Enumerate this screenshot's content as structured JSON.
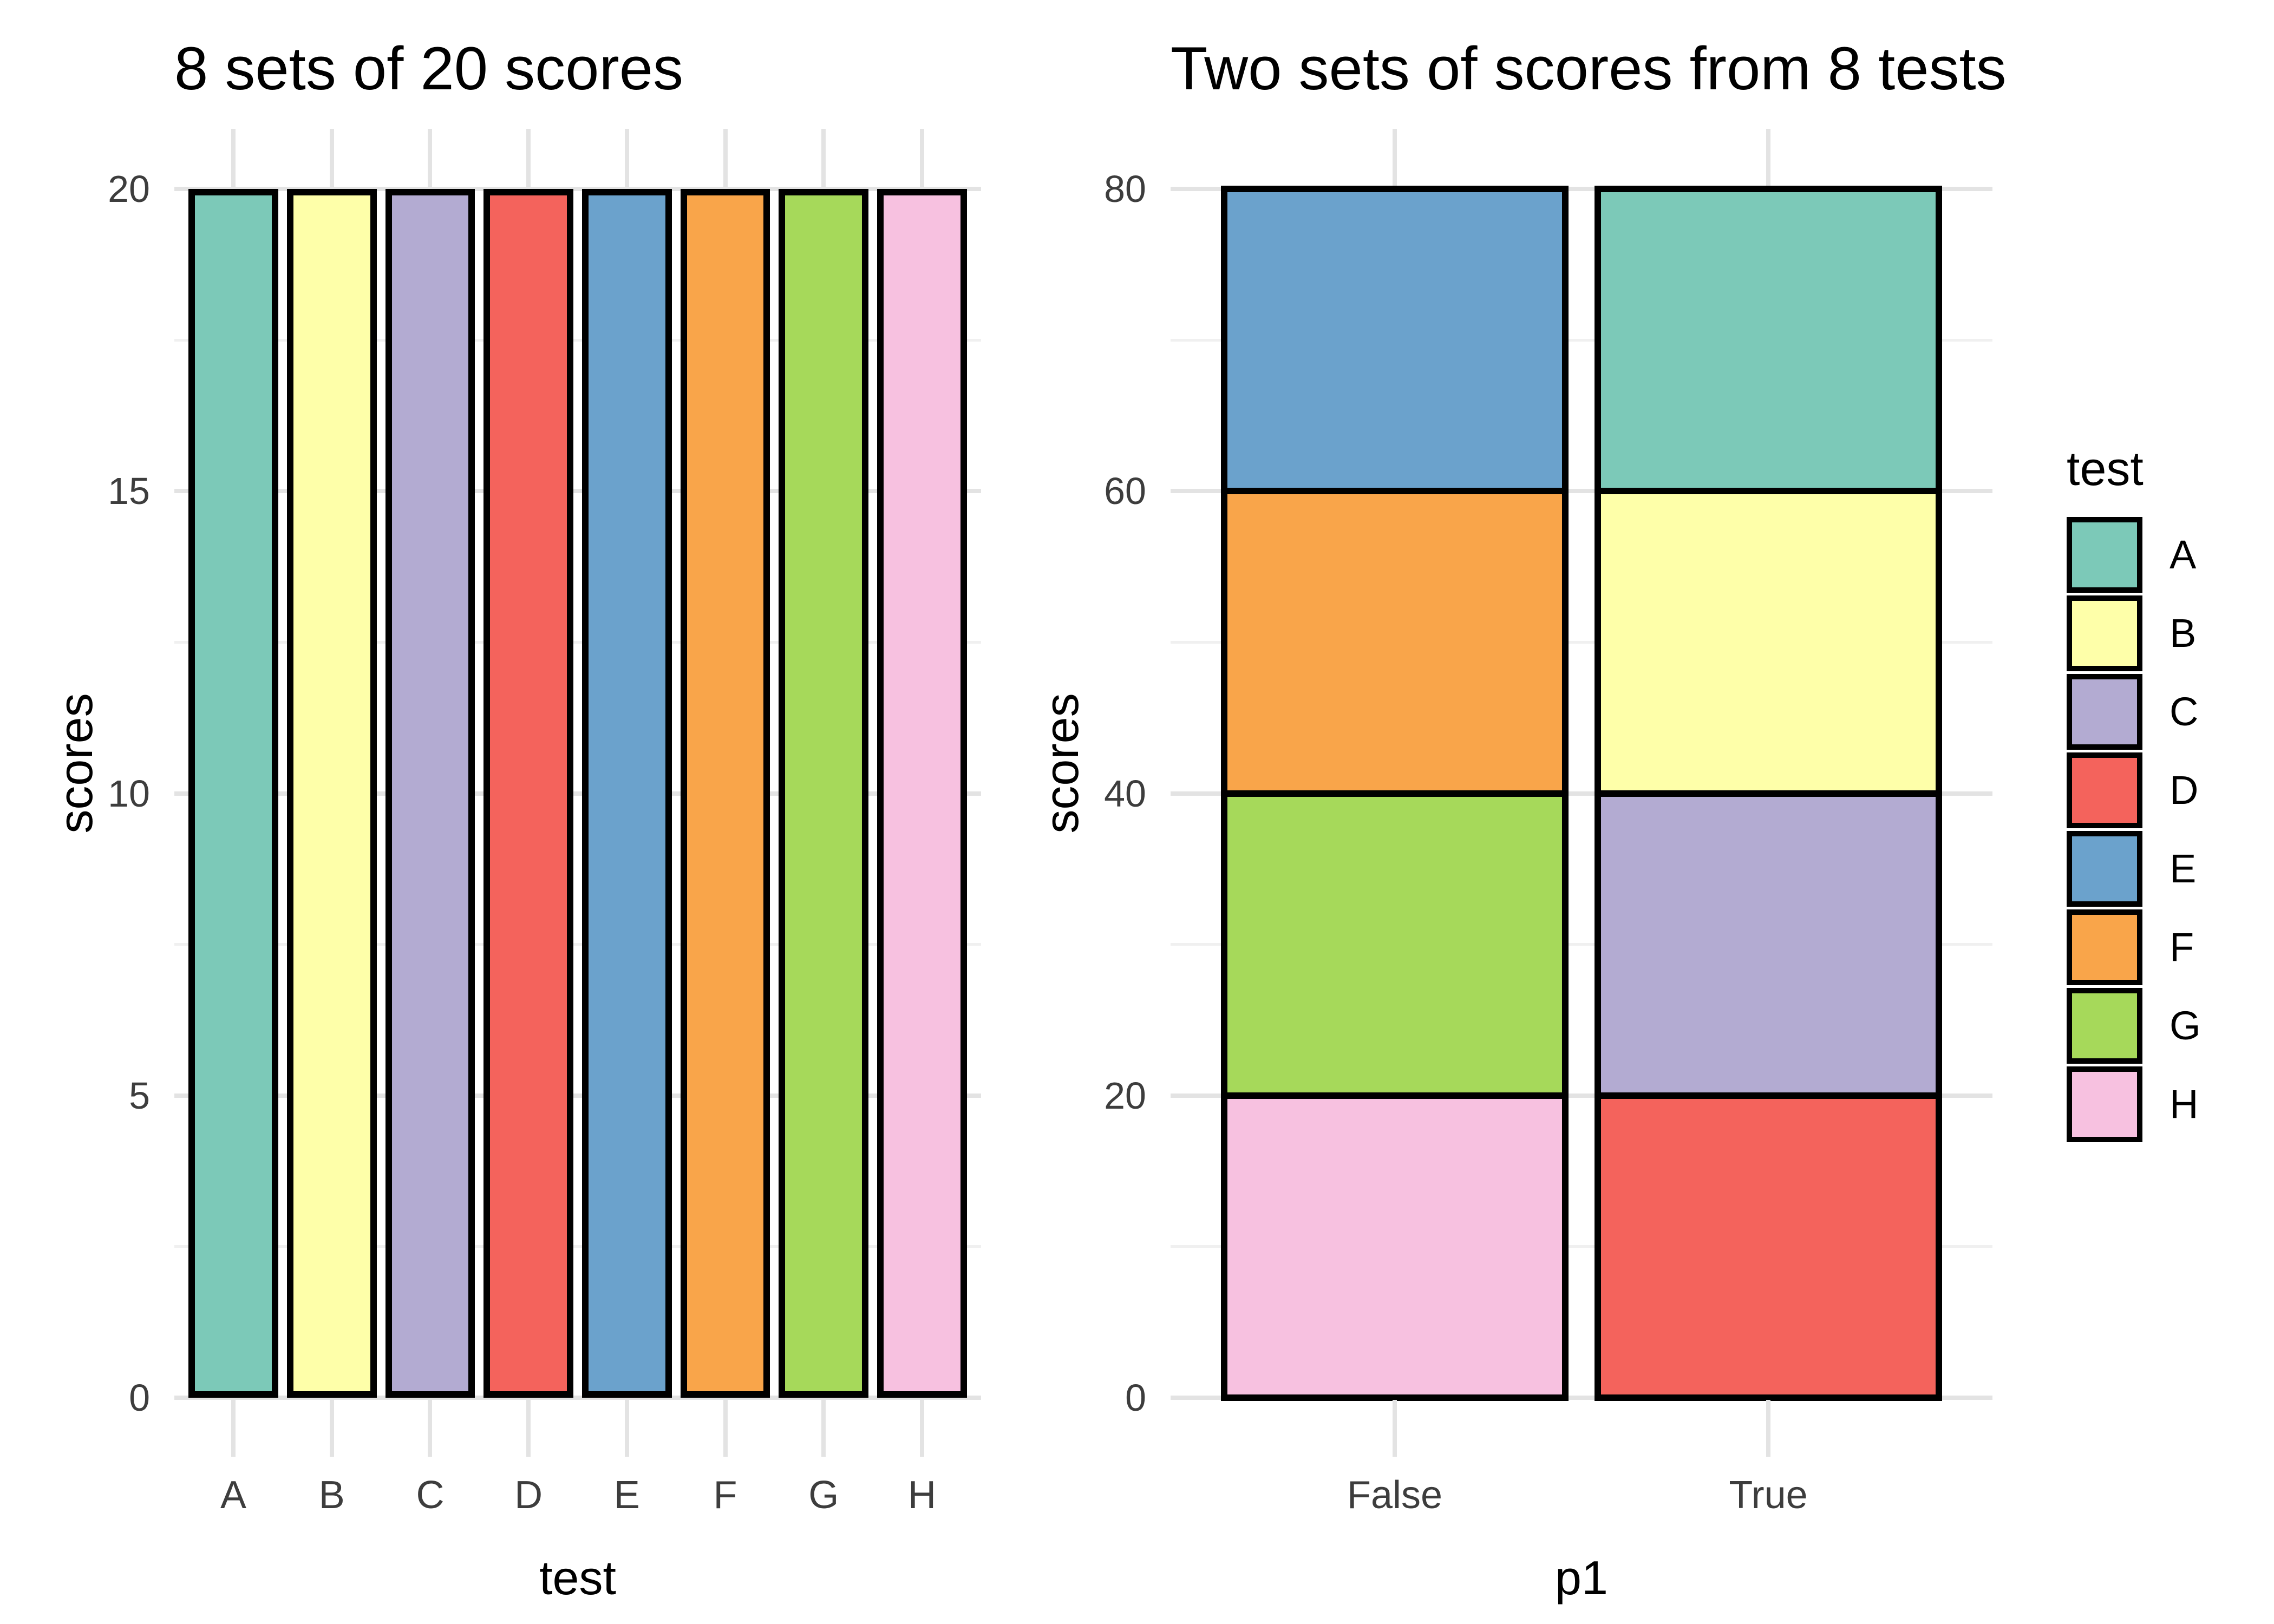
{
  "chart_data": [
    {
      "type": "bar",
      "title": "8 sets of 20 scores",
      "xlabel": "test",
      "ylabel": "scores",
      "categories": [
        "A",
        "B",
        "C",
        "D",
        "E",
        "F",
        "G",
        "H"
      ],
      "values": [
        20,
        20,
        20,
        20,
        20,
        20,
        20,
        20
      ],
      "ylim": [
        0,
        20
      ],
      "yticks_major": [
        0,
        5,
        10,
        15,
        20
      ],
      "yticks_minor": [
        2.5,
        7.5,
        12.5,
        17.5
      ],
      "grid": "on",
      "legend_position": "none"
    },
    {
      "type": "bar",
      "stacked": true,
      "title": "Two sets of scores from 8 tests",
      "xlabel": "p1",
      "ylabel": "scores",
      "categories": [
        "False",
        "True"
      ],
      "stacks": [
        [
          {
            "test": "H",
            "value": 20
          },
          {
            "test": "G",
            "value": 20
          },
          {
            "test": "F",
            "value": 20
          },
          {
            "test": "E",
            "value": 20
          }
        ],
        [
          {
            "test": "D",
            "value": 20
          },
          {
            "test": "C",
            "value": 20
          },
          {
            "test": "B",
            "value": 20
          },
          {
            "test": "A",
            "value": 20
          }
        ]
      ],
      "ylim": [
        0,
        80
      ],
      "yticks_major": [
        0,
        20,
        40,
        60,
        80
      ],
      "yticks_minor": [
        10,
        30,
        50,
        70
      ],
      "grid": "on",
      "legend_position": "right"
    }
  ],
  "legend": {
    "title": "test",
    "entries": [
      {
        "label": "A",
        "color": "#7cc9b8"
      },
      {
        "label": "B",
        "color": "#feffa9"
      },
      {
        "label": "C",
        "color": "#b3abd2"
      },
      {
        "label": "D",
        "color": "#f4635c"
      },
      {
        "label": "E",
        "color": "#6ba2cc"
      },
      {
        "label": "F",
        "color": "#f9a54a"
      },
      {
        "label": "G",
        "color": "#a6d95a"
      },
      {
        "label": "H",
        "color": "#f7c1e0"
      }
    ]
  },
  "palette": {
    "A": "#7cc9b8",
    "B": "#feffa9",
    "C": "#b3abd2",
    "D": "#f4635c",
    "E": "#6ba2cc",
    "F": "#f9a54a",
    "G": "#a6d95a",
    "H": "#f7c1e0"
  },
  "style": {
    "background": "#ffffff",
    "grid_major": "#e3e3e3",
    "grid_minor": "#f0f0f0",
    "bar_edge": "#000000",
    "tick_label_color": "#3d3d3d",
    "text_color": "#000000"
  }
}
